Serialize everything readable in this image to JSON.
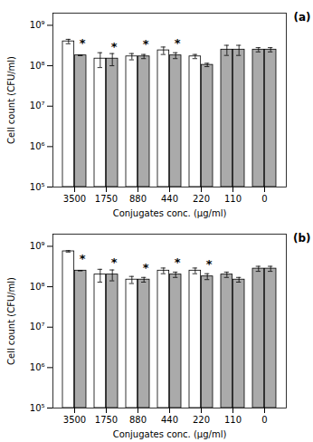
{
  "chart_data": [
    {
      "type": "bar",
      "title": "(a)",
      "log": "y",
      "categories": [
        "3500",
        "1750",
        "880",
        "440",
        "220",
        "110",
        "0"
      ],
      "series": [
        {
          "values": [
            400000000,
            150000000,
            170000000,
            240000000,
            170000000,
            250000000,
            250000000
          ],
          "errors": [
            50000000,
            60000000,
            30000000,
            50000000,
            20000000,
            70000000,
            30000000
          ],
          "colors": [
            "#ffffff",
            "#ffffff",
            "#ffffff",
            "#ffffff",
            "#ffffff",
            "#aaaaaa",
            "#aaaaaa"
          ]
        },
        {
          "values": [
            180000000,
            150000000,
            170000000,
            180000000,
            105000000,
            250000000,
            250000000
          ],
          "errors": [
            1000000,
            50000000,
            20000000,
            30000000,
            10000000,
            70000000,
            30000000
          ],
          "colors": [
            "#aaaaaa",
            "#aaaaaa",
            "#aaaaaa",
            "#aaaaaa",
            "#aaaaaa",
            "#aaaaaa",
            "#aaaaaa"
          ]
        }
      ],
      "annotations": [
        {
          "text": "*",
          "category": "3500"
        },
        {
          "text": "*",
          "category": "1750"
        },
        {
          "text": "*",
          "category": "880"
        },
        {
          "text": "*",
          "category": "440"
        }
      ],
      "ylim": [
        100000,
        2000000000
      ],
      "yticks": [
        {
          "value": 100000,
          "label": "10⁵"
        },
        {
          "value": 1000000,
          "label": "10⁶"
        },
        {
          "value": 10000000,
          "label": "10⁷"
        },
        {
          "value": 100000000,
          "label": "10⁸"
        },
        {
          "value": 1000000000,
          "label": "10⁹"
        }
      ],
      "ylabel": "Cell count (CFU/ml)",
      "xlabel": "Conjugates conc. (μg/ml)"
    },
    {
      "type": "bar",
      "title": "(b)",
      "log": "y",
      "categories": [
        "3500",
        "1750",
        "880",
        "440",
        "220",
        "110",
        "0"
      ],
      "series": [
        {
          "values": [
            750000000,
            200000000,
            150000000,
            250000000,
            250000000,
            200000000,
            280000000
          ],
          "errors": [
            30000000,
            70000000,
            30000000,
            40000000,
            40000000,
            30000000,
            40000000
          ],
          "colors": [
            "#ffffff",
            "#ffffff",
            "#ffffff",
            "#ffffff",
            "#ffffff",
            "#aaaaaa",
            "#aaaaaa"
          ]
        },
        {
          "values": [
            250000000,
            200000000,
            150000000,
            200000000,
            180000000,
            150000000,
            280000000
          ],
          "errors": [
            1000000,
            60000000,
            20000000,
            30000000,
            30000000,
            20000000,
            40000000
          ],
          "colors": [
            "#aaaaaa",
            "#aaaaaa",
            "#aaaaaa",
            "#aaaaaa",
            "#aaaaaa",
            "#aaaaaa",
            "#aaaaaa"
          ]
        }
      ],
      "annotations": [
        {
          "text": "*",
          "category": "3500"
        },
        {
          "text": "*",
          "category": "1750"
        },
        {
          "text": "*",
          "category": "880"
        },
        {
          "text": "*",
          "category": "440"
        },
        {
          "text": "*",
          "category": "220"
        }
      ],
      "ylim": [
        100000,
        2000000000
      ],
      "yticks": [
        {
          "value": 100000,
          "label": "10⁵"
        },
        {
          "value": 1000000,
          "label": "10⁶"
        },
        {
          "value": 10000000,
          "label": "10⁷"
        },
        {
          "value": 100000000,
          "label": "10⁸"
        },
        {
          "value": 1000000000,
          "label": "10⁹"
        }
      ],
      "ylabel": "Cell count (CFU/ml)",
      "xlabel": "Conjugates conc. (μg/ml)"
    }
  ]
}
